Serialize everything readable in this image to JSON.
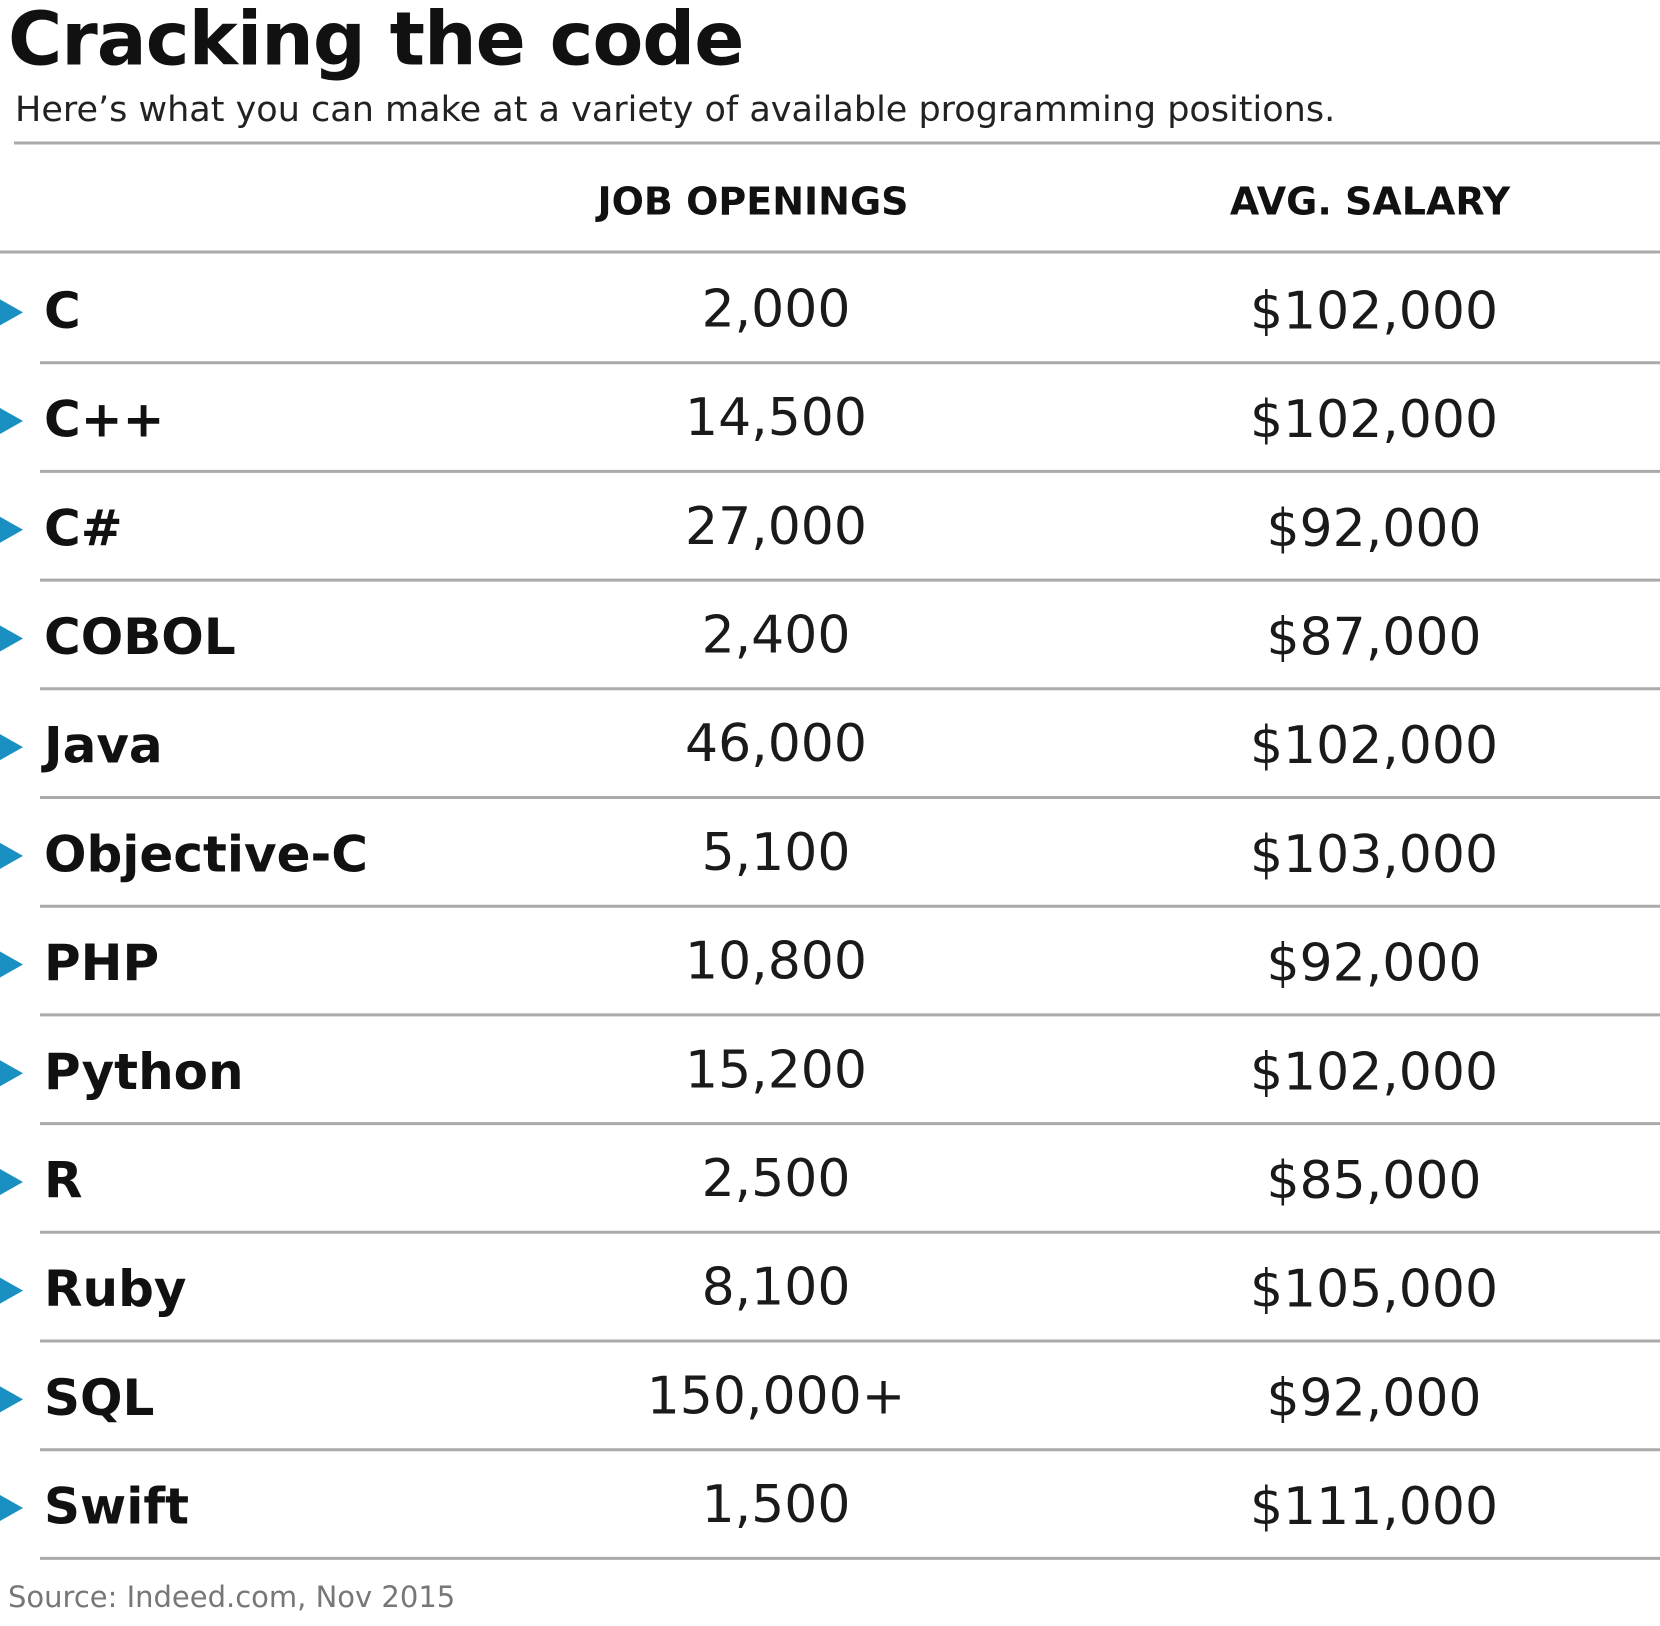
{
  "header": {
    "title": "Cracking the code",
    "subtitle": "Here’s what you can make at a variety of available programming positions."
  },
  "table": {
    "columns": [
      "JOB OPENINGS",
      "AVG. SALARY"
    ],
    "rows": [
      [
        "C",
        "2,000",
        "$102,000"
      ],
      [
        "C++",
        "14,500",
        "$102,000"
      ],
      [
        "C#",
        "27,000",
        "$92,000"
      ],
      [
        "COBOL",
        "2,400",
        "$87,000"
      ],
      [
        "Java",
        "46,000",
        "$102,000"
      ],
      [
        "Objective-C",
        "5,100",
        "$103,000"
      ],
      [
        "PHP",
        "10,800",
        "$92,000"
      ],
      [
        "Python",
        "15,200",
        "$102,000"
      ],
      [
        "R",
        "2,500",
        "$85,000"
      ],
      [
        "Ruby",
        "8,100",
        "$105,000"
      ],
      [
        "SQL",
        "150,000+",
        "$92,000"
      ],
      [
        "Swift",
        "1,500",
        "$111,000"
      ]
    ]
  },
  "source": "Source: Indeed.com, Nov 2015"
}
